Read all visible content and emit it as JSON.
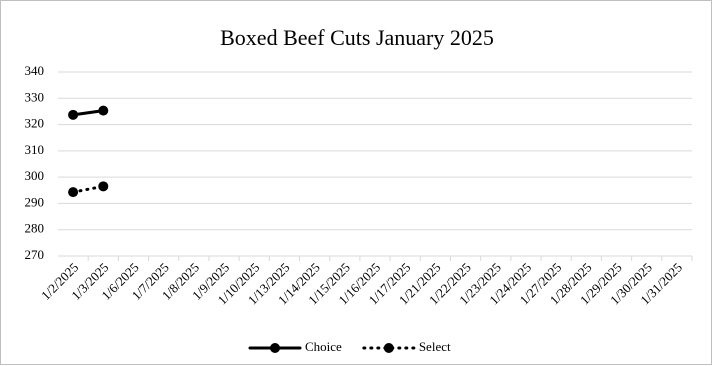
{
  "chart_data": {
    "type": "line",
    "title": "Boxed Beef Cuts January  2025",
    "categories": [
      "1/2/2025",
      "1/3/2025",
      "1/6/2025",
      "1/7/2025",
      "1/8/2025",
      "1/9/2025",
      "1/10/2025",
      "1/13/2025",
      "1/14/2025",
      "1/15/2025",
      "1/16/2025",
      "1/17/2025",
      "1/21/2025",
      "1/22/2025",
      "1/23/2025",
      "1/24/2025",
      "1/27/2025",
      "1/28/2025",
      "1/29/2025",
      "1/30/2025",
      "1/31/2025"
    ],
    "series": [
      {
        "name": "Choice",
        "color": "#000000",
        "dash": "solid",
        "values": [
          323.7,
          325.3,
          null,
          null,
          null,
          null,
          null,
          null,
          null,
          null,
          null,
          null,
          null,
          null,
          null,
          null,
          null,
          null,
          null,
          null,
          null
        ]
      },
      {
        "name": "Select",
        "color": "#000000",
        "dash": "dotted",
        "values": [
          294.3,
          296.5,
          null,
          null,
          null,
          null,
          null,
          null,
          null,
          null,
          null,
          null,
          null,
          null,
          null,
          null,
          null,
          null,
          null,
          null,
          null
        ]
      }
    ],
    "ylim": [
      270,
      340
    ],
    "yticks": [
      270,
      280,
      290,
      300,
      310,
      320,
      330,
      340
    ],
    "grid": true,
    "legend": "bottom"
  }
}
